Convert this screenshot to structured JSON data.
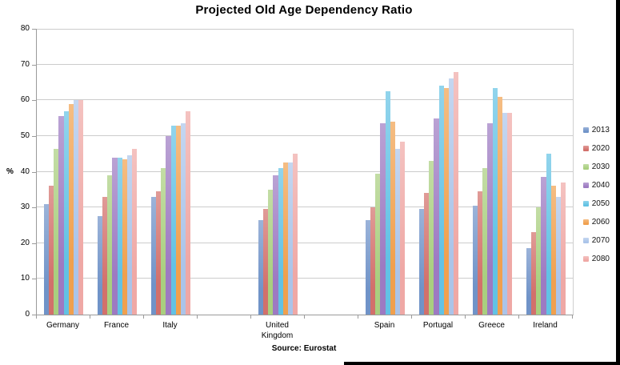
{
  "title": "Projected Old Age Dependency Ratio",
  "source": "Source: Eurostat",
  "y_axis_title": "%",
  "chart_data": {
    "type": "bar",
    "title": "Projected Old Age Dependency Ratio",
    "xlabel": "",
    "ylabel": "%",
    "ylim": [
      0,
      80
    ],
    "yticks": [
      0,
      10,
      20,
      30,
      40,
      50,
      60,
      70,
      80
    ],
    "grid": true,
    "legend_position": "right",
    "categories": [
      "Germany",
      "France",
      "Italy",
      "United Kingdom",
      "Spain",
      "Portugal",
      "Greece",
      "Ireland"
    ],
    "slot_order": [
      "Germany",
      "France",
      "Italy",
      "",
      "United Kingdom",
      "",
      "Spain",
      "Portugal",
      "Greece",
      "Ireland"
    ],
    "series": [
      {
        "name": "2013",
        "color": "#7093c8",
        "values": [
          31,
          27.5,
          33,
          26.5,
          26.5,
          29.5,
          30.5,
          18.5
        ]
      },
      {
        "name": "2020",
        "color": "#d2706b",
        "values": [
          36,
          33,
          34.5,
          29.5,
          30,
          34,
          34.5,
          23
        ]
      },
      {
        "name": "2030",
        "color": "#a9cf7f",
        "values": [
          46.5,
          39,
          41,
          35,
          39.5,
          43,
          41,
          30
        ]
      },
      {
        "name": "2040",
        "color": "#9d7ac2",
        "values": [
          55.5,
          44,
          50,
          39,
          53.5,
          55,
          53.5,
          38.5
        ]
      },
      {
        "name": "2050",
        "color": "#62c2e4",
        "values": [
          57,
          44,
          53,
          41,
          62.5,
          64,
          63.5,
          45
        ]
      },
      {
        "name": "2060",
        "color": "#f0a04e",
        "values": [
          59,
          43.5,
          53,
          42.5,
          54,
          63.5,
          61,
          36
        ]
      },
      {
        "name": "2070",
        "color": "#abc4e9",
        "values": [
          60,
          44.5,
          53.5,
          42.5,
          46.5,
          66,
          56.5,
          33
        ]
      },
      {
        "name": "2080",
        "color": "#efa8a5",
        "values": [
          60,
          46.5,
          57,
          45,
          48.5,
          68,
          56.5,
          37
        ]
      }
    ]
  }
}
